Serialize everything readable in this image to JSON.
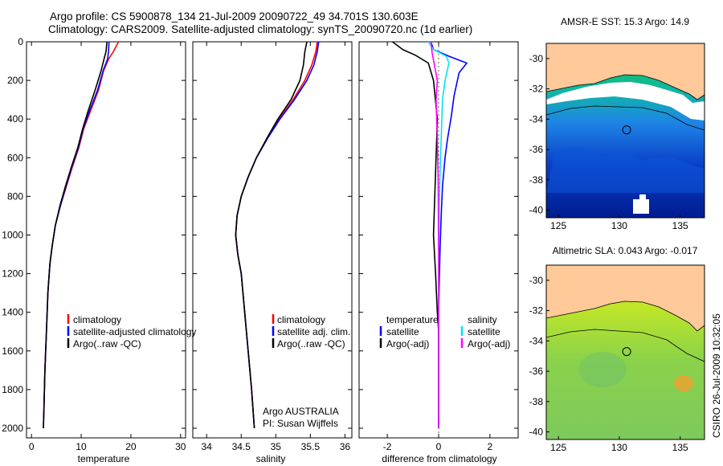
{
  "header": {
    "line1": "Argo profile: CS 5900878_134 21-Jul-2009 20090722_49 34.701S 130.603E",
    "line2": "Climatology: CARS2009. Satellite-adjusted climatology: synTS_20090720.nc (1d earlier)"
  },
  "colors": {
    "red": "#ff0000",
    "blue": "#0000ff",
    "black": "#000000",
    "cyan": "#00e5ee",
    "magenta": "#ff00ff",
    "land": "#ffc99a"
  },
  "chart_data": [
    {
      "type": "line",
      "id": "temperature",
      "xlabel": "temperature",
      "xlim": [
        -1,
        31
      ],
      "ylim": [
        2050,
        0
      ],
      "xticks": [
        0,
        10,
        20,
        30
      ],
      "yticks": [
        0,
        200,
        400,
        600,
        800,
        1000,
        1200,
        1400,
        1600,
        1800,
        2000
      ],
      "legend": [
        "climatology",
        "satellite-adjusted climatology",
        "Argo(..raw -QC)"
      ],
      "series": [
        {
          "name": "climatology",
          "color": "#ff0000",
          "points": [
            [
              17.5,
              0
            ],
            [
              16.5,
              50
            ],
            [
              15.5,
              90
            ],
            [
              14.5,
              150
            ],
            [
              13.5,
              250
            ],
            [
              12,
              350
            ],
            [
              10.5,
              450
            ],
            [
              9.5,
              550
            ],
            [
              8.2,
              650
            ],
            [
              7,
              750
            ],
            [
              5.8,
              850
            ],
            [
              4.8,
              950
            ],
            [
              4.2,
              1050
            ],
            [
              3.7,
              1150
            ],
            [
              3.3,
              1300
            ],
            [
              3.0,
              1500
            ],
            [
              2.7,
              1700
            ],
            [
              2.5,
              1900
            ],
            [
              2.4,
              2000
            ]
          ]
        },
        {
          "name": "satellite-adjusted climatology",
          "color": "#0000ff",
          "points": [
            [
              15.6,
              0
            ],
            [
              15.5,
              50
            ],
            [
              15.3,
              90
            ],
            [
              14.4,
              150
            ],
            [
              13.3,
              250
            ],
            [
              11.8,
              350
            ],
            [
              10.4,
              450
            ],
            [
              9.4,
              550
            ],
            [
              8.1,
              650
            ],
            [
              6.9,
              750
            ],
            [
              5.8,
              850
            ],
            [
              4.8,
              950
            ],
            [
              4.2,
              1050
            ],
            [
              3.7,
              1150
            ],
            [
              3.3,
              1300
            ],
            [
              3.0,
              1500
            ],
            [
              2.7,
              1700
            ],
            [
              2.5,
              1900
            ],
            [
              2.4,
              2000
            ]
          ]
        },
        {
          "name": "Argo(..raw -QC)",
          "color": "#000000",
          "points": [
            [
              15.2,
              0
            ],
            [
              15.0,
              50
            ],
            [
              14.6,
              90
            ],
            [
              14.0,
              150
            ],
            [
              12.8,
              250
            ],
            [
              11.5,
              350
            ],
            [
              10.3,
              450
            ],
            [
              9.3,
              550
            ],
            [
              8.0,
              650
            ],
            [
              6.8,
              750
            ],
            [
              5.7,
              850
            ],
            [
              4.8,
              950
            ],
            [
              4.2,
              1050
            ],
            [
              3.7,
              1150
            ],
            [
              3.3,
              1300
            ],
            [
              3.0,
              1500
            ],
            [
              2.7,
              1700
            ],
            [
              2.5,
              1900
            ],
            [
              2.4,
              2000
            ]
          ]
        }
      ]
    },
    {
      "type": "line",
      "id": "salinity",
      "xlabel": "salinity",
      "xlim": [
        33.8,
        36.1
      ],
      "ylim": [
        2050,
        0
      ],
      "xticks": [
        34,
        34.5,
        35,
        35.5,
        36
      ],
      "yticks": [
        0,
        200,
        400,
        600,
        800,
        1000,
        1200,
        1400,
        1600,
        1800,
        2000
      ],
      "legend": [
        "climatology",
        "satellite adj. clim.",
        "Argo(..raw -QC)"
      ],
      "annotation": [
        "Argo AUSTRALIA",
        "PI: Susan Wijffels"
      ],
      "series": [
        {
          "name": "climatology",
          "color": "#ff0000",
          "points": [
            [
              35.6,
              0
            ],
            [
              35.58,
              50
            ],
            [
              35.52,
              120
            ],
            [
              35.42,
              200
            ],
            [
              35.25,
              300
            ],
            [
              35.05,
              400
            ],
            [
              34.88,
              500
            ],
            [
              34.72,
              600
            ],
            [
              34.6,
              700
            ],
            [
              34.5,
              800
            ],
            [
              34.44,
              900
            ],
            [
              34.42,
              1000
            ],
            [
              34.45,
              1100
            ],
            [
              34.5,
              1200
            ],
            [
              34.55,
              1400
            ],
            [
              34.6,
              1600
            ],
            [
              34.65,
              1800
            ],
            [
              34.69,
              2000
            ]
          ]
        },
        {
          "name": "satellite adj. clim.",
          "color": "#0000ff",
          "points": [
            [
              35.62,
              0
            ],
            [
              35.6,
              50
            ],
            [
              35.55,
              120
            ],
            [
              35.45,
              200
            ],
            [
              35.27,
              300
            ],
            [
              35.06,
              400
            ],
            [
              34.88,
              500
            ],
            [
              34.72,
              600
            ],
            [
              34.6,
              700
            ],
            [
              34.5,
              800
            ],
            [
              34.44,
              900
            ],
            [
              34.42,
              1000
            ],
            [
              34.45,
              1100
            ],
            [
              34.5,
              1200
            ],
            [
              34.55,
              1400
            ],
            [
              34.6,
              1600
            ],
            [
              34.65,
              1800
            ],
            [
              34.69,
              2000
            ]
          ]
        },
        {
          "name": "Argo(..raw -QC)",
          "color": "#000000",
          "points": [
            [
              35.45,
              0
            ],
            [
              35.42,
              50
            ],
            [
              35.4,
              120
            ],
            [
              35.35,
              200
            ],
            [
              35.22,
              300
            ],
            [
              35.03,
              400
            ],
            [
              34.87,
              500
            ],
            [
              34.72,
              600
            ],
            [
              34.6,
              700
            ],
            [
              34.5,
              800
            ],
            [
              34.44,
              900
            ],
            [
              34.42,
              1000
            ],
            [
              34.45,
              1100
            ],
            [
              34.5,
              1200
            ],
            [
              34.55,
              1400
            ],
            [
              34.6,
              1600
            ],
            [
              34.65,
              1800
            ],
            [
              34.69,
              2000
            ]
          ]
        }
      ]
    },
    {
      "type": "line",
      "id": "difference",
      "xlabel": "difference from climatology",
      "xlim": [
        -3.1,
        3.1
      ],
      "ylim": [
        2050,
        0
      ],
      "xticks": [
        -2,
        0,
        2
      ],
      "yticks": [
        0,
        200,
        400,
        600,
        800,
        1000,
        1200,
        1400,
        1600,
        1800,
        2000
      ],
      "legend_left_title": "temperature",
      "legend_right_title": "salinity",
      "legend_left": [
        "satellite",
        "Argo(-adj)"
      ],
      "legend_right": [
        "satellite",
        "Argo(-adj)"
      ],
      "series": [
        {
          "name": "temperature satellite",
          "color": "#0000ff",
          "points": [
            [
              -0.3,
              0
            ],
            [
              -0.2,
              40
            ],
            [
              0.4,
              75
            ],
            [
              1.1,
              110
            ],
            [
              0.8,
              160
            ],
            [
              0.6,
              280
            ],
            [
              0.5,
              380
            ],
            [
              0.35,
              500
            ],
            [
              0.25,
              600
            ],
            [
              0.15,
              750
            ],
            [
              0.1,
              900
            ],
            [
              0.05,
              1100
            ],
            [
              0.0,
              1400
            ],
            [
              0.0,
              2000
            ]
          ]
        },
        {
          "name": "temperature Argo(-adj)",
          "color": "#000000",
          "points": [
            [
              -1.8,
              0
            ],
            [
              -1.4,
              40
            ],
            [
              -0.9,
              70
            ],
            [
              -0.4,
              110
            ],
            [
              -0.2,
              200
            ],
            [
              -0.05,
              400
            ],
            [
              -0.1,
              600
            ],
            [
              -0.15,
              800
            ],
            [
              -0.2,
              1000
            ],
            [
              -0.12,
              1200
            ],
            [
              -0.05,
              1400
            ],
            [
              0.0,
              1500
            ],
            [
              0.0,
              2000
            ]
          ]
        },
        {
          "name": "salinity satellite",
          "color": "#00e5ee",
          "points": [
            [
              -0.4,
              0
            ],
            [
              -0.2,
              40
            ],
            [
              0.3,
              75
            ],
            [
              0.4,
              110
            ],
            [
              0.25,
              200
            ],
            [
              0.15,
              300
            ],
            [
              0.1,
              500
            ],
            [
              0.05,
              700
            ],
            [
              0.02,
              900
            ],
            [
              0.0,
              1200
            ],
            [
              0.0,
              2000
            ]
          ]
        },
        {
          "name": "salinity Argo(-adj)",
          "color": "#ff00ff",
          "points": [
            [
              -0.3,
              0
            ],
            [
              -0.25,
              60
            ],
            [
              -0.15,
              130
            ],
            [
              -0.05,
              200
            ],
            [
              -0.1,
              300
            ],
            [
              -0.05,
              500
            ],
            [
              -0.02,
              700
            ],
            [
              -0.01,
              900
            ],
            [
              0.0,
              1200
            ],
            [
              0.0,
              2000
            ]
          ]
        }
      ]
    },
    {
      "type": "heatmap",
      "id": "sst_map",
      "title": "AMSR-E SST: 15.3 Argo: 14.9",
      "xlim": [
        124,
        137
      ],
      "ylim": [
        -40.5,
        -29
      ],
      "xticks": [
        125,
        130,
        135
      ],
      "yticks": [
        -30,
        -32,
        -34,
        -36,
        -38,
        -40
      ],
      "marker": [
        130.603,
        -34.701
      ]
    },
    {
      "type": "heatmap",
      "id": "sla_map",
      "title": "Altimetric SLA: 0.043 Argo: -0.017",
      "xlim": [
        124,
        137
      ],
      "ylim": [
        -40.5,
        -29
      ],
      "xticks": [
        125,
        130,
        135
      ],
      "yticks": [
        -30,
        -32,
        -34,
        -36,
        -38,
        -40
      ],
      "marker": [
        130.603,
        -34.701
      ]
    }
  ],
  "footer": {
    "stamp": "CSIRO 26-Jul-2009 10:32:05"
  }
}
